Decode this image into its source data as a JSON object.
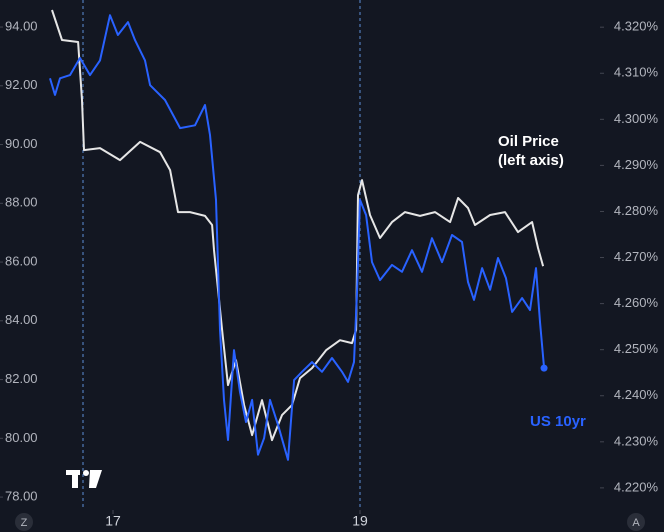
{
  "chart_data": {
    "type": "line",
    "xlim": [
      16.085,
      20.943
    ],
    "xticks": [
      17,
      19
    ],
    "ylim": [
      77.56,
      94.92
    ],
    "yticks": [
      {
        "value": 78,
        "label": "78.00"
      },
      {
        "value": 80,
        "label": "80.00"
      },
      {
        "value": 82,
        "label": "82.00"
      },
      {
        "value": 84,
        "label": "84.00"
      },
      {
        "value": 86,
        "label": "86.00"
      },
      {
        "value": 88,
        "label": "88.00"
      },
      {
        "value": 90,
        "label": "90.00"
      },
      {
        "value": 92,
        "label": "92.00"
      },
      {
        "value": 94,
        "label": "94.00"
      }
    ],
    "y2lim": [
      4.2152,
      4.3259
    ],
    "y2ticks": [
      {
        "value": 4.22,
        "label": "4.220%"
      },
      {
        "value": 4.23,
        "label": "4.230%"
      },
      {
        "value": 4.24,
        "label": "4.240%"
      },
      {
        "value": 4.25,
        "label": "4.250%"
      },
      {
        "value": 4.26,
        "label": "4.260%"
      },
      {
        "value": 4.27,
        "label": "4.270%"
      },
      {
        "value": 4.28,
        "label": "4.280%"
      },
      {
        "value": 4.29,
        "label": "4.290%"
      },
      {
        "value": 4.3,
        "label": "4.300%"
      },
      {
        "value": 4.31,
        "label": "4.310%"
      },
      {
        "value": 4.32,
        "label": "4.320%"
      }
    ],
    "series": [
      {
        "name": "Oil Price",
        "note": "(left axis)",
        "color": "#e6e6e6",
        "axis": "y",
        "x": [
          16.506,
          16.587,
          16.717,
          16.749,
          16.765,
          16.895,
          17.057,
          17.219,
          17.381,
          17.462,
          17.526,
          17.623,
          17.745,
          17.802,
          17.818,
          17.883,
          17.931,
          17.996,
          18.061,
          18.126,
          18.206,
          18.287,
          18.368,
          18.449,
          18.514,
          18.611,
          18.725,
          18.838,
          18.935,
          18.968,
          18.984,
          19.016,
          19.081,
          19.162,
          19.259,
          19.364,
          19.486,
          19.607,
          19.729,
          19.794,
          19.874,
          19.931,
          20.053,
          20.174,
          20.279,
          20.393,
          20.441,
          20.482
        ],
        "values": [
          94.58,
          93.56,
          93.49,
          91.51,
          89.81,
          89.88,
          89.47,
          90.09,
          89.74,
          89.13,
          87.7,
          87.7,
          87.57,
          87.26,
          86.41,
          83.69,
          81.81,
          82.66,
          81.13,
          80.11,
          81.3,
          79.94,
          80.79,
          81.13,
          82.05,
          82.39,
          83.0,
          83.34,
          83.24,
          83.69,
          88.28,
          88.79,
          87.6,
          86.82,
          87.36,
          87.7,
          87.57,
          87.7,
          87.36,
          88.18,
          87.84,
          87.26,
          87.6,
          87.7,
          87.02,
          87.36,
          86.48,
          85.86
        ]
      },
      {
        "name": "US 10yr",
        "color": "#2962ff",
        "axis": "y2",
        "x": [
          16.49,
          16.53,
          16.571,
          16.652,
          16.733,
          16.814,
          16.895,
          16.976,
          17.04,
          17.121,
          17.178,
          17.259,
          17.3,
          17.421,
          17.543,
          17.664,
          17.745,
          17.785,
          17.834,
          17.866,
          17.899,
          17.931,
          17.98,
          18.028,
          18.077,
          18.126,
          18.174,
          18.223,
          18.271,
          18.336,
          18.417,
          18.466,
          18.53,
          18.611,
          18.692,
          18.773,
          18.854,
          18.903,
          18.951,
          18.976,
          19.0,
          19.049,
          19.097,
          19.162,
          19.259,
          19.34,
          19.421,
          19.502,
          19.583,
          19.664,
          19.745,
          19.826,
          19.874,
          19.923,
          19.988,
          20.053,
          20.117,
          20.182,
          20.231,
          20.312,
          20.376,
          20.425,
          20.457,
          20.49
        ],
        "values": [
          4.3089,
          4.3053,
          4.3089,
          4.3096,
          4.3133,
          4.3096,
          4.3128,
          4.3226,
          4.3183,
          4.3211,
          4.3172,
          4.3128,
          4.3074,
          4.3042,
          4.2981,
          4.2987,
          4.3031,
          4.2966,
          4.2825,
          4.2543,
          4.2391,
          4.2304,
          4.2499,
          4.2408,
          4.2343,
          4.2391,
          4.2272,
          4.2308,
          4.2391,
          4.2337,
          4.2261,
          4.2434,
          4.2452,
          4.2473,
          4.2452,
          4.2482,
          4.2452,
          4.243,
          4.2473,
          4.263,
          4.2825,
          4.2792,
          4.269,
          4.2651,
          4.2684,
          4.2669,
          4.2716,
          4.2669,
          4.2742,
          4.269,
          4.2749,
          4.2734,
          4.2647,
          4.2608,
          4.2677,
          4.263,
          4.2699,
          4.2655,
          4.2582,
          4.2612,
          4.2586,
          4.2677,
          4.256,
          4.246
        ]
      }
    ],
    "scale_buttons": [
      "Z",
      "A"
    ]
  }
}
